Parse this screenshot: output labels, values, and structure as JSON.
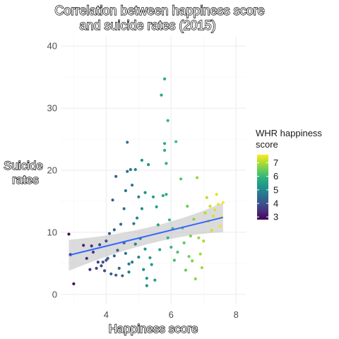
{
  "chart_data": {
    "type": "scatter",
    "title": [
      "Correlation between happiness score",
      "and suicide rates (2015)"
    ],
    "xlabel": "Happiness score",
    "ylabel": [
      "Suicide",
      "rates"
    ],
    "xlim": [
      2.6,
      8.3
    ],
    "ylim": [
      -1.5,
      41.5
    ],
    "x_ticks": [
      4,
      6,
      8
    ],
    "y_ticks": [
      0,
      10,
      20,
      30,
      40
    ],
    "grid": true,
    "legend": {
      "title": [
        "WHR happiness",
        "score"
      ],
      "position": "right",
      "ticks": [
        3,
        4,
        5,
        6,
        7
      ],
      "range": [
        2.8,
        7.6
      ],
      "colormap": "viridis"
    },
    "trend_line": {
      "method": "linear",
      "x": [
        2.85,
        7.6
      ],
      "y": [
        6.3,
        12.4
      ],
      "ci_lower": [
        3.8,
        10.0
      ],
      "ci_upper": [
        8.8,
        14.8
      ],
      "color": "#3366ff",
      "band_color": "#bebebe"
    },
    "points": [
      [
        2.85,
        9.7
      ],
      [
        2.9,
        6.4
      ],
      [
        3.0,
        1.7
      ],
      [
        3.3,
        7.9
      ],
      [
        3.4,
        5.8
      ],
      [
        3.5,
        4.0
      ],
      [
        3.55,
        7.8
      ],
      [
        3.6,
        6.8
      ],
      [
        3.7,
        4.2
      ],
      [
        3.75,
        5.2
      ],
      [
        3.8,
        8.0
      ],
      [
        3.85,
        4.6
      ],
      [
        3.9,
        5.2
      ],
      [
        3.95,
        3.8
      ],
      [
        4.0,
        8.6
      ],
      [
        4.0,
        5.5
      ],
      [
        4.05,
        5.8
      ],
      [
        4.1,
        9.8
      ],
      [
        4.15,
        3.3
      ],
      [
        4.2,
        15.2
      ],
      [
        4.25,
        10.4
      ],
      [
        4.25,
        6.2
      ],
      [
        4.3,
        3.1
      ],
      [
        4.3,
        19.0
      ],
      [
        4.35,
        7.1
      ],
      [
        4.4,
        4.2
      ],
      [
        4.45,
        11.3
      ],
      [
        4.5,
        3.0
      ],
      [
        4.55,
        13.8
      ],
      [
        4.55,
        8.3
      ],
      [
        4.6,
        16.7
      ],
      [
        4.6,
        6.6
      ],
      [
        4.65,
        24.5
      ],
      [
        4.65,
        19.8
      ],
      [
        4.7,
        4.9
      ],
      [
        4.7,
        3.6
      ],
      [
        4.75,
        20.1
      ],
      [
        4.8,
        17.6
      ],
      [
        4.8,
        5.2
      ],
      [
        4.85,
        11.4
      ],
      [
        4.9,
        20.1
      ],
      [
        4.9,
        8.1
      ],
      [
        4.95,
        12.3
      ],
      [
        5.0,
        15.7
      ],
      [
        5.0,
        6.0
      ],
      [
        5.05,
        9.0
      ],
      [
        5.1,
        13.8
      ],
      [
        5.1,
        21.6
      ],
      [
        5.15,
        4.0
      ],
      [
        5.2,
        16.4
      ],
      [
        5.2,
        7.3
      ],
      [
        5.25,
        2.6
      ],
      [
        5.25,
        1.4
      ],
      [
        5.3,
        20.9
      ],
      [
        5.35,
        5.9
      ],
      [
        5.4,
        4.8
      ],
      [
        5.45,
        15.7
      ],
      [
        5.5,
        2.3
      ],
      [
        5.55,
        14.1
      ],
      [
        5.6,
        11.2
      ],
      [
        5.65,
        7.2
      ],
      [
        5.7,
        32.1
      ],
      [
        5.75,
        15.9
      ],
      [
        5.8,
        34.7
      ],
      [
        5.8,
        24.3
      ],
      [
        5.8,
        23.2
      ],
      [
        5.85,
        16.1
      ],
      [
        5.85,
        21.1
      ],
      [
        5.9,
        28.0
      ],
      [
        5.9,
        9.1
      ],
      [
        5.95,
        12.0
      ],
      [
        6.0,
        7.6
      ],
      [
        6.05,
        10.6
      ],
      [
        6.1,
        5.5
      ],
      [
        6.15,
        24.6
      ],
      [
        6.2,
        6.8
      ],
      [
        6.3,
        18.6
      ],
      [
        6.35,
        10.7
      ],
      [
        6.4,
        8.3
      ],
      [
        6.45,
        3.9
      ],
      [
        6.5,
        14.2
      ],
      [
        6.55,
        6.1
      ],
      [
        6.6,
        9.4
      ],
      [
        6.65,
        5.4
      ],
      [
        6.7,
        12.1
      ],
      [
        6.75,
        2.5
      ],
      [
        6.8,
        18.8
      ],
      [
        6.85,
        9.1
      ],
      [
        6.9,
        6.5
      ],
      [
        6.95,
        4.3
      ],
      [
        7.0,
        8.6
      ],
      [
        7.05,
        13.1
      ],
      [
        7.1,
        15.6
      ],
      [
        7.15,
        11.8
      ],
      [
        7.2,
        14.2
      ],
      [
        7.25,
        10.3
      ],
      [
        7.3,
        12.6
      ],
      [
        7.35,
        13.6
      ],
      [
        7.4,
        16.1
      ],
      [
        7.45,
        14.5
      ],
      [
        7.5,
        11.0
      ],
      [
        7.55,
        12.5
      ],
      [
        7.6,
        14.8
      ]
    ]
  }
}
